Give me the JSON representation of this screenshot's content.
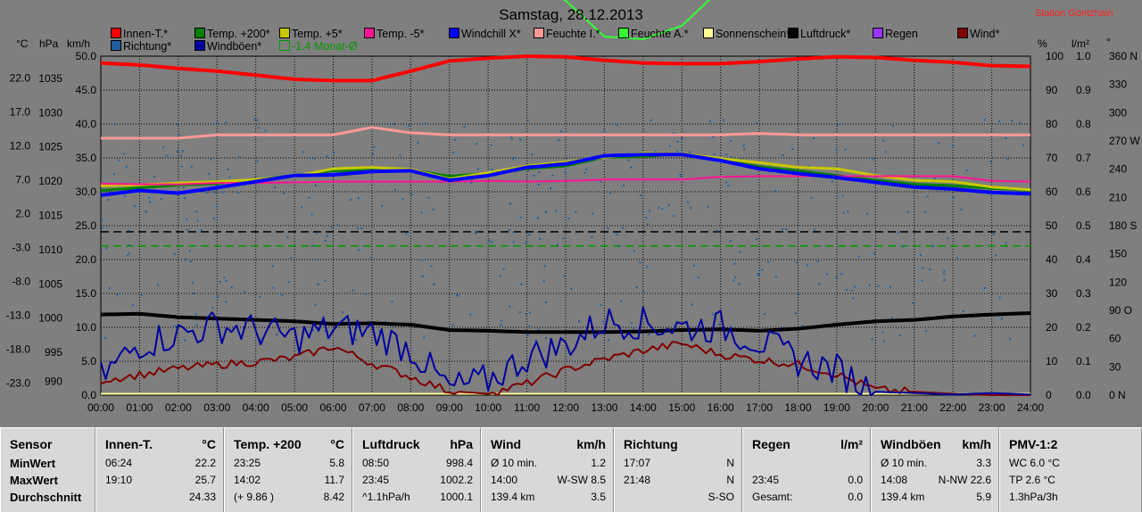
{
  "header": {
    "title": "Samstag, 28.12.2013",
    "station": "Station Göritzhain"
  },
  "legend": [
    {
      "label": "Innen-T.*",
      "color": "#ff0000"
    },
    {
      "label": "Temp. +200*",
      "color": "#008000"
    },
    {
      "label": "Temp. +5*",
      "color": "#c8c800"
    },
    {
      "label": "Temp. -5*",
      "color": "#ff1493"
    },
    {
      "label": "Windchill X*",
      "color": "#0000ff"
    },
    {
      "label": "Feuchte I.*",
      "color": "#ff9999"
    },
    {
      "label": "Feuchte A.*",
      "color": "#33ff33"
    },
    {
      "label": "Sonnenschein*",
      "color": "#ffff99"
    },
    {
      "label": "Luftdruck*",
      "color": "#000000"
    },
    {
      "label": "Regen",
      "color": "#9933ff"
    },
    {
      "label": "Wind*",
      "color": "#800000"
    },
    {
      "label": "Richtung*",
      "color": "#1f5f9f"
    },
    {
      "label": "Windböen*",
      "color": "#0000a0"
    },
    {
      "label": "-1.4 Monat-Ø",
      "color": "#009900"
    }
  ],
  "axis_titles": {
    "temp": "°C",
    "press": "hPa",
    "wind": "km/h",
    "hum": "%",
    "rain": "l/m²",
    "dir": "°"
  },
  "chart_data": {
    "type": "line",
    "x": [
      "00:00",
      "01:00",
      "02:00",
      "03:00",
      "04:00",
      "05:00",
      "06:00",
      "07:00",
      "08:00",
      "09:00",
      "10:00",
      "11:00",
      "12:00",
      "13:00",
      "14:00",
      "15:00",
      "16:00",
      "17:00",
      "18:00",
      "19:00",
      "20:00",
      "21:00",
      "22:00",
      "23:00",
      "24:00"
    ],
    "axes": {
      "temp_ticks": [
        "22.0",
        "17.0",
        "12.0",
        "7.0",
        "2.0",
        "-3.0",
        "-8.0",
        "-13.0",
        "-18.0",
        "-23.0"
      ],
      "press_ticks": [
        "1035",
        "1030",
        "1025",
        "1020",
        "1015",
        "1010",
        "1005",
        "1000",
        "995",
        "990"
      ],
      "wind_ticks": [
        "50.0",
        "45.0",
        "40.0",
        "35.0",
        "30.0",
        "25.0",
        "20.0",
        "15.0",
        "10.0",
        "5.0",
        "0.0"
      ],
      "hum_ticks": [
        "100",
        "90",
        "80",
        "70",
        "60",
        "50",
        "40",
        "30",
        "20",
        "10",
        "0"
      ],
      "rain_ticks": [
        "1.0",
        "0.9",
        "0.8",
        "0.7",
        "0.6",
        "0.5",
        "0.4",
        "0.3",
        "0.2",
        "0.1",
        "0.0"
      ],
      "dir_ticks": [
        "360 N",
        "330",
        "300",
        "270 W",
        "240",
        "210",
        "180 S",
        "150",
        "120",
        "90 O",
        "60",
        "30",
        "0 N"
      ],
      "wind_range": [
        0,
        50
      ]
    },
    "series": [
      {
        "name": "Innen-T.*",
        "color": "#ff0000",
        "width": 4,
        "values": [
          49,
          48.7,
          48.2,
          47.8,
          47.2,
          46.6,
          46.4,
          46.4,
          47.8,
          49.3,
          49.7,
          50,
          49.9,
          49.4,
          49,
          48.9,
          48.9,
          49.2,
          49.6,
          49.9,
          49.8,
          49.4,
          49.1,
          48.6,
          48.5
        ]
      },
      {
        "name": "Temp. +200*",
        "color": "#008000",
        "width": 3,
        "values": [
          30.2,
          30.6,
          31,
          31.2,
          31.8,
          32.4,
          33.1,
          33.2,
          33.2,
          32.3,
          32.7,
          33.4,
          33.8,
          35.1,
          35.2,
          35.6,
          34.7,
          33.7,
          33.1,
          32.4,
          31.7,
          31.1,
          30.9,
          30.5,
          30.2
        ]
      },
      {
        "name": "Temp. +5*",
        "color": "#c8c800",
        "width": 3,
        "values": [
          30.9,
          31,
          31.3,
          31.5,
          31.8,
          32.3,
          33.4,
          33.6,
          33.3,
          31.9,
          32.8,
          33.8,
          34.4,
          35.1,
          35.7,
          35.6,
          34.9,
          34.3,
          33.6,
          33.4,
          32.4,
          31.7,
          31.5,
          30.7,
          30.3
        ]
      },
      {
        "name": "Temp. -5*",
        "color": "#ff1493",
        "width": 2,
        "values": [
          31.2,
          31.1,
          31.1,
          31.3,
          31.3,
          31.4,
          31.5,
          31.5,
          31.5,
          31.5,
          31.6,
          31.5,
          31.6,
          31.8,
          31.8,
          31.8,
          32.2,
          32.3,
          32.3,
          32.3,
          32.3,
          32.3,
          32.3,
          31.6,
          31.5
        ]
      },
      {
        "name": "Windchill X*",
        "color": "#0000ff",
        "width": 4,
        "values": [
          29.5,
          30.2,
          29.8,
          30.6,
          31.5,
          32.4,
          32.5,
          33,
          33.1,
          31.7,
          32.4,
          33.6,
          34.1,
          35.3,
          35.5,
          35.5,
          34.6,
          33.4,
          32.7,
          32.1,
          31.4,
          30.7,
          30.4,
          29.9,
          29.7
        ]
      },
      {
        "name": "Feuchte I.*",
        "color": "#ff9999",
        "width": 3,
        "values": [
          37.9,
          37.9,
          37.9,
          38.4,
          38.4,
          38.4,
          38.4,
          39.5,
          38.7,
          38.4,
          38.4,
          38.4,
          38.4,
          38.4,
          38.4,
          38.4,
          38.4,
          38.6,
          38.4,
          38.4,
          38.4,
          38.4,
          38.4,
          38.4,
          38.4
        ]
      },
      {
        "name": "Feuchte A.*",
        "color": "#33ff33",
        "width": 2,
        "values": [
          67,
          67.4,
          68.6,
          69.7,
          69.6,
          69.7,
          69,
          67.4,
          63,
          68.8,
          67.1,
          61.5,
          58.2,
          52.9,
          52.5,
          54.5,
          59.9,
          63.8,
          65.1,
          65.2,
          66.5,
          70.9,
          73.9,
          76.5,
          77.6
        ]
      },
      {
        "name": "Luftdruck*",
        "color": "#000000",
        "width": 4,
        "values": [
          1001.9,
          1002,
          1001.5,
          1001.3,
          1001.1,
          1000.9,
          1000.5,
          1000.6,
          1000.4,
          999.6,
          999.5,
          999.3,
          999.3,
          999.3,
          999.4,
          999.6,
          999.7,
          999.5,
          999.8,
          1000.4,
          1000.9,
          1001.1,
          1001.6,
          1001.9,
          1002.1
        ]
      },
      {
        "name": "Wind*",
        "color": "#800000",
        "width": 2,
        "values": [
          2.2,
          3,
          3.9,
          4.5,
          4.9,
          5.5,
          7.2,
          4.7,
          2.7,
          0.6,
          0.2,
          1.7,
          3.7,
          5.3,
          6.6,
          7.6,
          6,
          5.2,
          4.5,
          3.1,
          0.8,
          0.5,
          0.2,
          0,
          0
        ]
      },
      {
        "name": "Windböen*",
        "color": "#0000a0",
        "width": 2,
        "values": [
          2.6,
          7.6,
          9,
          10.2,
          9.6,
          8.4,
          9.8,
          9.3,
          6.8,
          0.9,
          2.2,
          5.6,
          7.3,
          10.9,
          10.6,
          10,
          10.1,
          7.9,
          5.2,
          3.7,
          0.5,
          0.3,
          0.1,
          0.3,
          0.1
        ]
      }
    ],
    "markers": {
      "black_dashed_wind": 24.1,
      "green_dashed_wind": 22,
      "sunshine_wind": 0.2
    }
  },
  "stats": {
    "sensor": {
      "title": "Sensor",
      "rows": [
        "MinWert",
        "MaxWert",
        "Durchschnitt"
      ]
    },
    "panels": [
      {
        "title": "Innen-T.",
        "unit": "°C",
        "rows": [
          [
            "06:24",
            "22.2"
          ],
          [
            "19:10",
            "25.7"
          ],
          [
            "",
            "24.33"
          ]
        ]
      },
      {
        "title": "Temp. +200",
        "unit": "°C",
        "rows": [
          [
            "23:25",
            "5.8"
          ],
          [
            "14:02",
            "11.7"
          ],
          [
            "(+ 9.86 )",
            "8.42"
          ]
        ]
      },
      {
        "title": "Luftdruck",
        "unit": "hPa",
        "rows": [
          [
            "08:50",
            "998.4"
          ],
          [
            "23:45",
            "1002.2"
          ],
          [
            "^1.1hPa/h",
            "1000.1"
          ]
        ]
      },
      {
        "title": "Wind",
        "unit": "km/h",
        "rows": [
          [
            "Ø 10 min.",
            "1.2"
          ],
          [
            "14:00",
            "W-SW 8.5"
          ],
          [
            "139.4 km",
            "3.5"
          ]
        ]
      },
      {
        "title": "Richtung",
        "unit": "",
        "rows": [
          [
            "17:07",
            "N"
          ],
          [
            "21:48",
            "N"
          ],
          [
            "",
            "S-SO"
          ]
        ]
      },
      {
        "title": "Regen",
        "unit": "l/m²",
        "rows": [
          [
            "",
            ""
          ],
          [
            "23:45",
            "0.0"
          ],
          [
            "Gesamt:",
            "0.0"
          ]
        ]
      },
      {
        "title": "Windböen",
        "unit": "km/h",
        "rows": [
          [
            "Ø 10 min.",
            "3.3"
          ],
          [
            "14:08",
            "N-NW 22.6"
          ],
          [
            "139.4 km",
            "5.9"
          ]
        ]
      },
      {
        "title": "PMV-1:2",
        "unit": "",
        "rows": [
          [
            "WC 6.0 °C",
            ""
          ],
          [
            "TP 2.6 °C",
            ""
          ],
          [
            "1.3hPa/3h",
            ""
          ]
        ]
      }
    ]
  }
}
